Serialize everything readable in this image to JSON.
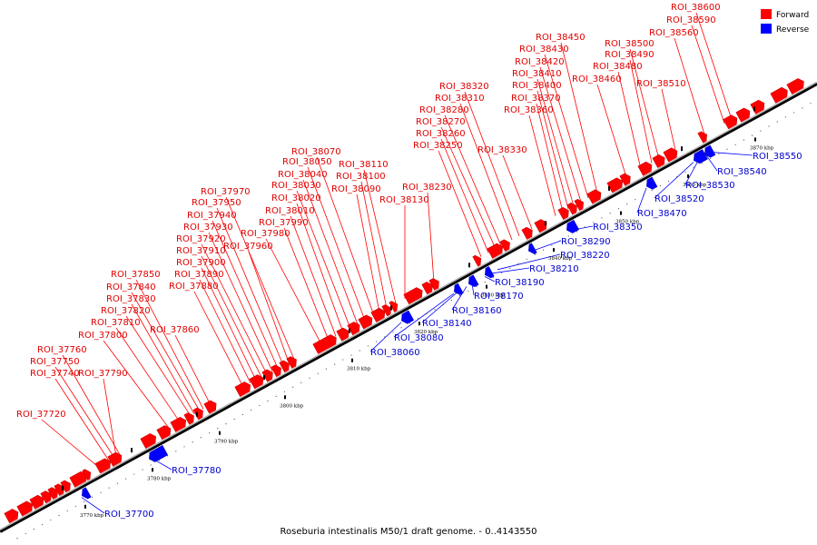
{
  "legend": {
    "forward_label": "Forward",
    "reverse_label": "Reverse",
    "forward_color": "#ff0000",
    "reverse_color": "#0000ff"
  },
  "caption": "Roseburia intestinalis M50/1 draft genome. - 0..4143550",
  "ticks": [
    "3770 kbp",
    "3780 kbp",
    "3790 kbp",
    "3800 kbp",
    "3810 kbp",
    "3820 kbp",
    "3830 kbp",
    "3840 kbp",
    "3850 kbp",
    "3860 kbp",
    "3870 kbp"
  ],
  "forward_labels": [
    "ROI_37720",
    "ROI_37740",
    "ROI_37750",
    "ROI_37760",
    "ROI_37790",
    "ROI_37800",
    "ROI_37810",
    "ROI_37820",
    "ROI_37830",
    "ROI_37840",
    "ROI_37850",
    "ROI_37860",
    "ROI_37880",
    "ROI_37890",
    "ROI_37900",
    "ROI_37910",
    "ROI_37920",
    "ROI_37930",
    "ROI_37940",
    "ROI_37950",
    "ROI_37960",
    "ROI_37970",
    "ROI_37980",
    "ROI_37990",
    "ROI_38010",
    "ROI_38020",
    "ROI_38030",
    "ROI_38040",
    "ROI_38050",
    "ROI_38070",
    "ROI_38090",
    "ROI_38100",
    "ROI_38110",
    "ROI_38130",
    "ROI_38230",
    "ROI_38250",
    "ROI_38260",
    "ROI_38270",
    "ROI_38280",
    "ROI_38310",
    "ROI_38320",
    "ROI_38330",
    "ROI_38360",
    "ROI_38370",
    "ROI_38400",
    "ROI_38410",
    "ROI_38420",
    "ROI_38430",
    "ROI_38450",
    "ROI_38460",
    "ROI_38480",
    "ROI_38490",
    "ROI_38500",
    "ROI_38510",
    "ROI_38560",
    "ROI_38590",
    "ROI_38600"
  ],
  "reverse_labels": [
    "ROI_37700",
    "ROI_37780",
    "ROI_38060",
    "ROI_38080",
    "ROI_38140",
    "ROI_38160",
    "ROI_38170",
    "ROI_38190",
    "ROI_38210",
    "ROI_38220",
    "ROI_38290",
    "ROI_38350",
    "ROI_38470",
    "ROI_38520",
    "ROI_38530",
    "ROI_38540",
    "ROI_38550"
  ]
}
